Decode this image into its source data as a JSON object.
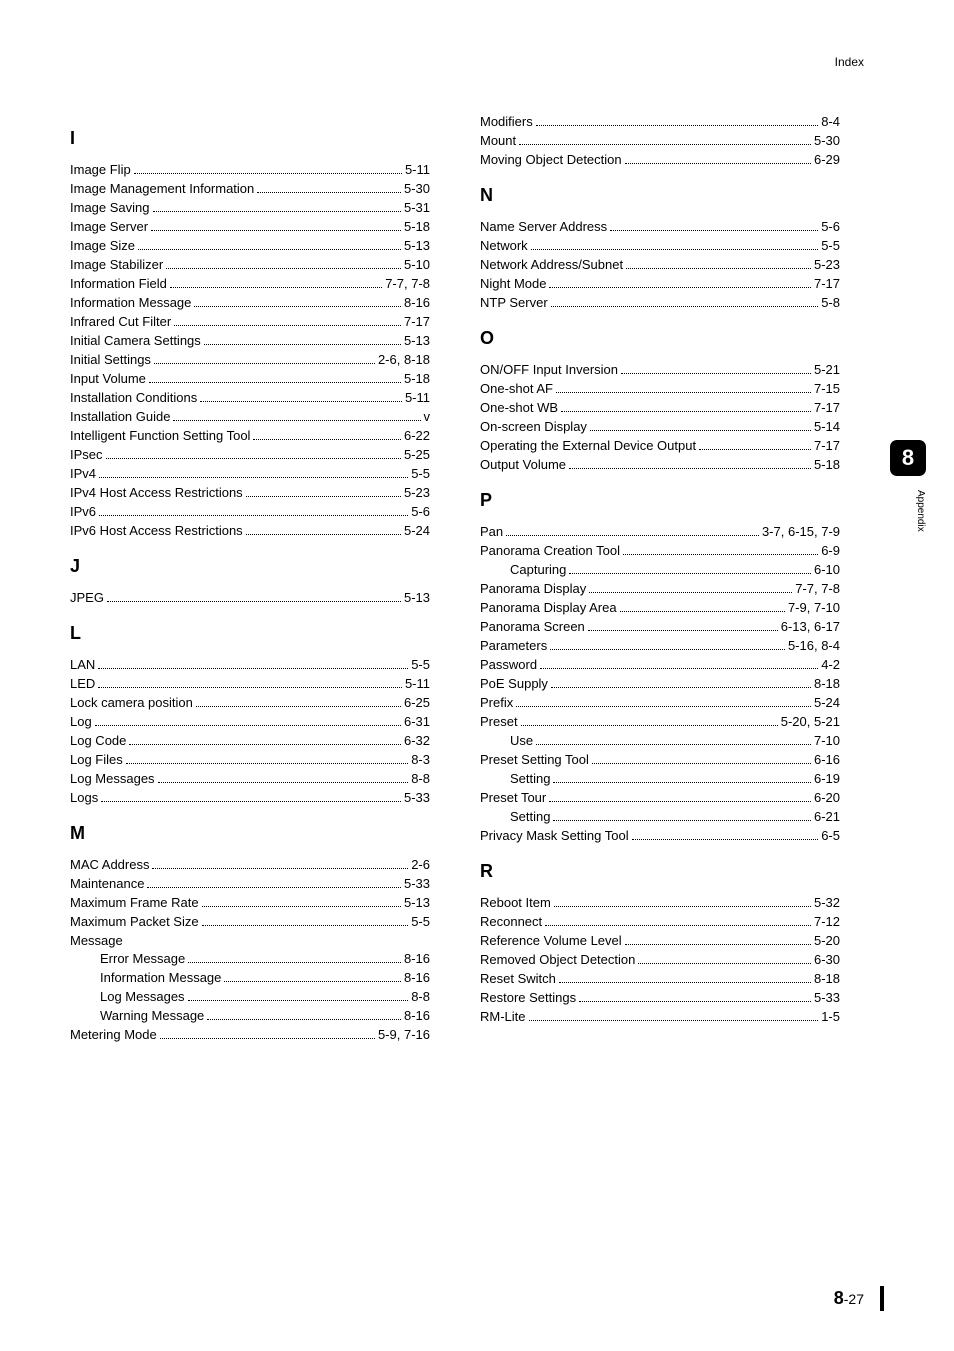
{
  "header": {
    "label": "Index"
  },
  "side_tab": {
    "number": "8",
    "text": "Appendix"
  },
  "footer": {
    "chapter": "8",
    "page": "-27"
  },
  "left_sections": [
    {
      "letter": "I",
      "entries": [
        {
          "term": "Image Flip",
          "page": "5-11"
        },
        {
          "term": "Image Management Information",
          "page": "5-30"
        },
        {
          "term": "Image Saving",
          "page": "5-31"
        },
        {
          "term": "Image Server",
          "page": "5-18"
        },
        {
          "term": "Image Size",
          "page": "5-13"
        },
        {
          "term": "Image Stabilizer",
          "page": "5-10"
        },
        {
          "term": "Information Field",
          "page": "7-7, 7-8"
        },
        {
          "term": "Information Message",
          "page": "8-16"
        },
        {
          "term": "Infrared Cut Filter",
          "page": "7-17"
        },
        {
          "term": "Initial Camera Settings",
          "page": "5-13"
        },
        {
          "term": "Initial Settings",
          "page": "2-6, 8-18"
        },
        {
          "term": "Input Volume",
          "page": "5-18"
        },
        {
          "term": "Installation Conditions",
          "page": "5-11"
        },
        {
          "term": "Installation Guide",
          "page": "v"
        },
        {
          "term": "Intelligent Function Setting Tool",
          "page": "6-22"
        },
        {
          "term": "IPsec",
          "page": "5-25"
        },
        {
          "term": "IPv4",
          "page": "5-5"
        },
        {
          "term": "IPv4 Host Access Restrictions",
          "page": "5-23"
        },
        {
          "term": "IPv6",
          "page": "5-6"
        },
        {
          "term": "IPv6 Host Access Restrictions",
          "page": "5-24"
        }
      ]
    },
    {
      "letter": "J",
      "entries": [
        {
          "term": "JPEG",
          "page": "5-13"
        }
      ]
    },
    {
      "letter": "L",
      "entries": [
        {
          "term": "LAN",
          "page": "5-5"
        },
        {
          "term": "LED",
          "page": "5-11"
        },
        {
          "term": "Lock camera position",
          "page": "6-25"
        },
        {
          "term": "Log",
          "page": "6-31"
        },
        {
          "term": "Log Code",
          "page": "6-32"
        },
        {
          "term": "Log Files",
          "page": "8-3"
        },
        {
          "term": "Log Messages",
          "page": "8-8"
        },
        {
          "term": "Logs",
          "page": "5-33"
        }
      ]
    },
    {
      "letter": "M",
      "entries": [
        {
          "term": "MAC Address",
          "page": "2-6"
        },
        {
          "term": "Maintenance",
          "page": "5-33"
        },
        {
          "term": "Maximum Frame Rate",
          "page": "5-13"
        },
        {
          "term": "Maximum Packet Size",
          "page": "5-5"
        },
        {
          "term": "Message",
          "group": true
        },
        {
          "term": "Error Message",
          "page": "8-16",
          "sub": true
        },
        {
          "term": "Information Message",
          "page": "8-16",
          "sub": true
        },
        {
          "term": "Log Messages",
          "page": "8-8",
          "sub": true
        },
        {
          "term": "Warning Message",
          "page": "8-16",
          "sub": true
        },
        {
          "term": "Metering Mode",
          "page": "5-9, 7-16"
        }
      ]
    }
  ],
  "right_sections": [
    {
      "letter": null,
      "entries": [
        {
          "term": "Modifiers",
          "page": "8-4"
        },
        {
          "term": "Mount",
          "page": "5-30"
        },
        {
          "term": "Moving Object Detection",
          "page": "6-29"
        }
      ]
    },
    {
      "letter": "N",
      "entries": [
        {
          "term": "Name Server Address",
          "page": "5-6"
        },
        {
          "term": "Network",
          "page": "5-5"
        },
        {
          "term": "Network Address/Subnet",
          "page": "5-23"
        },
        {
          "term": "Night Mode",
          "page": "7-17"
        },
        {
          "term": "NTP Server",
          "page": "5-8"
        }
      ]
    },
    {
      "letter": "O",
      "entries": [
        {
          "term": "ON/OFF Input Inversion",
          "page": "5-21"
        },
        {
          "term": "One-shot AF",
          "page": "7-15"
        },
        {
          "term": "One-shot WB",
          "page": "7-17"
        },
        {
          "term": "On-screen Display",
          "page": "5-14"
        },
        {
          "term": "Operating the External Device Output",
          "page": "7-17"
        },
        {
          "term": "Output Volume",
          "page": "5-18"
        }
      ]
    },
    {
      "letter": "P",
      "entries": [
        {
          "term": "Pan",
          "page": "3-7, 6-15, 7-9"
        },
        {
          "term": "Panorama Creation Tool",
          "page": "6-9"
        },
        {
          "term": "Capturing",
          "page": "6-10",
          "sub": true
        },
        {
          "term": "Panorama Display",
          "page": "7-7, 7-8"
        },
        {
          "term": "Panorama Display Area",
          "page": "7-9, 7-10"
        },
        {
          "term": "Panorama Screen",
          "page": "6-13, 6-17"
        },
        {
          "term": "Parameters",
          "page": "5-16, 8-4"
        },
        {
          "term": "Password",
          "page": "4-2"
        },
        {
          "term": "PoE Supply",
          "page": "8-18"
        },
        {
          "term": "Prefix",
          "page": "5-24"
        },
        {
          "term": "Preset",
          "page": "5-20, 5-21"
        },
        {
          "term": "Use",
          "page": "7-10",
          "sub": true
        },
        {
          "term": "Preset Setting Tool",
          "page": "6-16"
        },
        {
          "term": "Setting",
          "page": "6-19",
          "sub": true
        },
        {
          "term": "Preset Tour",
          "page": "6-20"
        },
        {
          "term": "Setting",
          "page": "6-21",
          "sub": true
        },
        {
          "term": "Privacy Mask Setting Tool",
          "page": "6-5"
        }
      ]
    },
    {
      "letter": "R",
      "entries": [
        {
          "term": "Reboot Item",
          "page": "5-32"
        },
        {
          "term": "Reconnect",
          "page": "7-12"
        },
        {
          "term": "Reference Volume Level",
          "page": "5-20"
        },
        {
          "term": "Removed Object Detection",
          "page": "6-30"
        },
        {
          "term": "Reset Switch",
          "page": "8-18"
        },
        {
          "term": "Restore Settings",
          "page": "5-33"
        },
        {
          "term": "RM-Lite",
          "page": "1-5"
        }
      ]
    }
  ]
}
